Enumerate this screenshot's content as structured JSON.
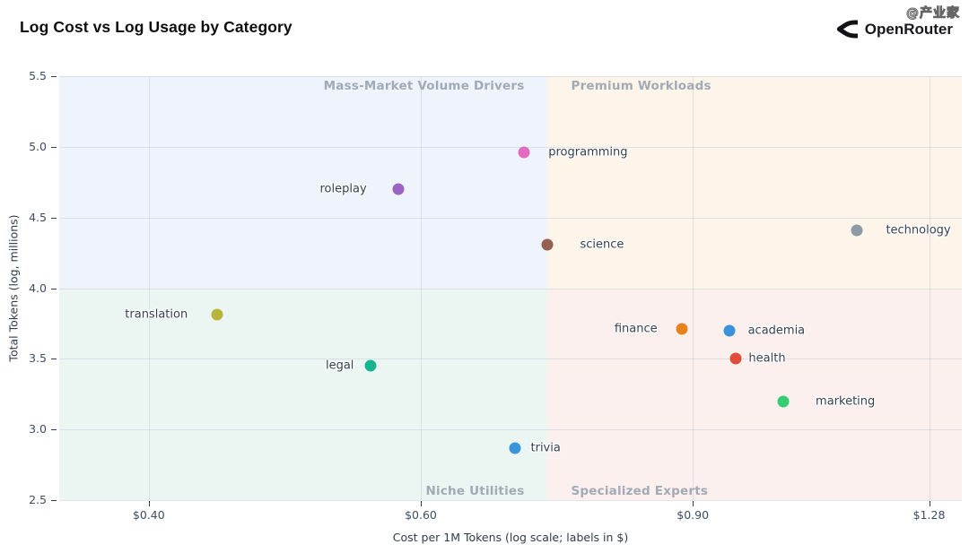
{
  "header": {
    "title": "Log Cost vs Log Usage by Category",
    "brand": "OpenRouter",
    "watermark": "@产业家"
  },
  "chart_data": {
    "type": "scatter",
    "title": "Log Cost vs Log Usage by Category",
    "xlabel": "Cost per 1M Tokens (log scale; labels in $)",
    "ylabel": "Total Tokens (log, millions)",
    "x_scale": "log",
    "x_range": [
      0.35,
      1.344
    ],
    "y_range": [
      2.5,
      5.5
    ],
    "grid": true,
    "x_ticks": [
      {
        "value": 0.4,
        "label": "$0.40"
      },
      {
        "value": 0.6,
        "label": "$0.60"
      },
      {
        "value": 0.9,
        "label": "$0.90"
      },
      {
        "value": 1.28,
        "label": "$1.28"
      }
    ],
    "y_ticks": [
      {
        "value": 2.5,
        "label": "2.5"
      },
      {
        "value": 3.0,
        "label": "3.0"
      },
      {
        "value": 3.5,
        "label": "3.5"
      },
      {
        "value": 4.0,
        "label": "4.0"
      },
      {
        "value": 4.5,
        "label": "4.5"
      },
      {
        "value": 5.0,
        "label": "5.0"
      },
      {
        "value": 5.5,
        "label": "5.5"
      }
    ],
    "quadrants": {
      "split_x": 0.725,
      "split_y": 4.0,
      "label_pad": 26,
      "top_left": {
        "label": "Mass-Market Volume Drivers",
        "bg": "#eef3fc"
      },
      "top_right": {
        "label": "Premium Workloads",
        "bg": "#fdf4ea"
      },
      "bottom_left": {
        "label": "Niche Utilities",
        "bg": "#ebf6f3"
      },
      "bottom_right": {
        "label": "Specialized Experts",
        "bg": "#fbf0ee"
      }
    },
    "points": [
      {
        "category": "programming",
        "cost": 0.7,
        "usage": 4.96,
        "color": "#e06bbf",
        "label_side": "right",
        "label_gap": 27
      },
      {
        "category": "roleplay",
        "cost": 0.58,
        "usage": 4.7,
        "color": "#9b64c3",
        "label_side": "left",
        "label_gap": 35
      },
      {
        "category": "technology",
        "cost": 1.15,
        "usage": 4.41,
        "color": "#8c9ba5",
        "label_side": "right",
        "label_gap": 32
      },
      {
        "category": "science",
        "cost": 0.725,
        "usage": 4.31,
        "color": "#926150",
        "label_side": "right",
        "label_gap": 36
      },
      {
        "category": "translation",
        "cost": 0.443,
        "usage": 3.81,
        "color": "#b9b53c",
        "label_side": "left",
        "label_gap": 33
      },
      {
        "category": "finance",
        "cost": 0.885,
        "usage": 3.71,
        "color": "#e8821e",
        "label_side": "left",
        "label_gap": 27
      },
      {
        "category": "academia",
        "cost": 0.95,
        "usage": 3.7,
        "color": "#3b93db",
        "label_side": "right",
        "label_gap": 21
      },
      {
        "category": "health",
        "cost": 0.96,
        "usage": 3.5,
        "color": "#e04b3c",
        "label_side": "right",
        "label_gap": 14
      },
      {
        "category": "legal",
        "cost": 0.557,
        "usage": 3.45,
        "color": "#17b58e",
        "label_side": "left",
        "label_gap": 19
      },
      {
        "category": "marketing",
        "cost": 1.03,
        "usage": 3.2,
        "color": "#34cd72",
        "label_side": "right",
        "label_gap": 36
      },
      {
        "category": "trivia",
        "cost": 0.69,
        "usage": 2.87,
        "color": "#3b93db",
        "label_side": "right",
        "label_gap": 18
      }
    ]
  }
}
